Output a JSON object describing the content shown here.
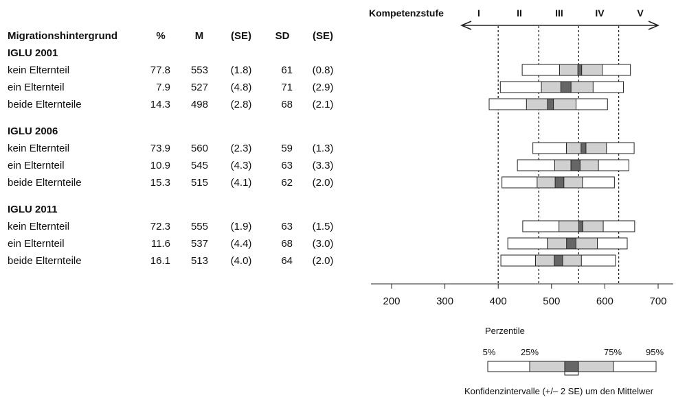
{
  "chart_data": {
    "type": "table",
    "header": {
      "label": "Migrationshintergrund",
      "columns": [
        "%",
        "M",
        "(SE)",
        "SD",
        "(SE)"
      ]
    },
    "scale_label": "Kompetenzstufe",
    "levels": [
      "I",
      "II",
      "III",
      "IV",
      "V"
    ],
    "level_cutoffs": [
      400,
      476,
      551,
      626
    ],
    "xlim": [
      160,
      740
    ],
    "xticks": [
      200,
      300,
      400,
      500,
      600,
      700
    ],
    "groups": [
      {
        "name": "IGLU 2001",
        "rows": [
          {
            "label": "kein Elternteil",
            "values": [
              "77.8",
              "553",
              "(1.8)",
              "61",
              "(0.8)"
            ],
            "mean": 553,
            "se": 1.8,
            "p5": 445,
            "p25": 515,
            "p75": 595,
            "p95": 648
          },
          {
            "label": "ein Elternteil",
            "values": [
              "7.9",
              "527",
              "(4.8)",
              "71",
              "(2.9)"
            ],
            "mean": 527,
            "se": 4.8,
            "p5": 404,
            "p25": 481,
            "p75": 578,
            "p95": 635
          },
          {
            "label": "beide Elternteile",
            "values": [
              "14.3",
              "498",
              "(2.8)",
              "68",
              "(2.1)"
            ],
            "mean": 498,
            "se": 2.8,
            "p5": 383,
            "p25": 453,
            "p75": 546,
            "p95": 605
          }
        ]
      },
      {
        "name": "IGLU 2006",
        "rows": [
          {
            "label": "kein Elternteil",
            "values": [
              "73.9",
              "560",
              "(2.3)",
              "59",
              "(1.3)"
            ],
            "mean": 560,
            "se": 2.3,
            "p5": 465,
            "p25": 528,
            "p75": 603,
            "p95": 655
          },
          {
            "label": "ein Elternteil",
            "values": [
              "10.9",
              "545",
              "(4.3)",
              "63",
              "(3.3)"
            ],
            "mean": 545,
            "se": 4.3,
            "p5": 436,
            "p25": 506,
            "p75": 588,
            "p95": 645
          },
          {
            "label": "beide Elternteile",
            "values": [
              "15.3",
              "515",
              "(4.1)",
              "62",
              "(2.0)"
            ],
            "mean": 515,
            "se": 4.1,
            "p5": 407,
            "p25": 473,
            "p75": 558,
            "p95": 618
          }
        ]
      },
      {
        "name": "IGLU 2011",
        "rows": [
          {
            "label": "kein Elternteil",
            "values": [
              "72.3",
              "555",
              "(1.9)",
              "63",
              "(1.5)"
            ],
            "mean": 555,
            "se": 1.9,
            "p5": 446,
            "p25": 514,
            "p75": 597,
            "p95": 656
          },
          {
            "label": "ein Elternteil",
            "values": [
              "11.6",
              "537",
              "(4.4)",
              "68",
              "(3.0)"
            ],
            "mean": 537,
            "se": 4.4,
            "p5": 418,
            "p25": 492,
            "p75": 586,
            "p95": 642
          },
          {
            "label": "beide Elternteile",
            "values": [
              "16.1",
              "513",
              "(4.0)",
              "64",
              "(2.0)"
            ],
            "mean": 513,
            "se": 4.0,
            "p5": 405,
            "p25": 470,
            "p75": 556,
            "p95": 620
          }
        ]
      }
    ],
    "legend": {
      "title": "Perzentile",
      "labels": [
        "5%",
        "25%",
        "75%",
        "95%"
      ],
      "caption": "Konfidenzintervalle (+/– 2 SE) um den Mittelwer"
    },
    "colors": {
      "outer_box": "#ffffff",
      "inner_box": "#d0d0d0",
      "ci_box": "#666666",
      "stroke": "#222222"
    }
  }
}
